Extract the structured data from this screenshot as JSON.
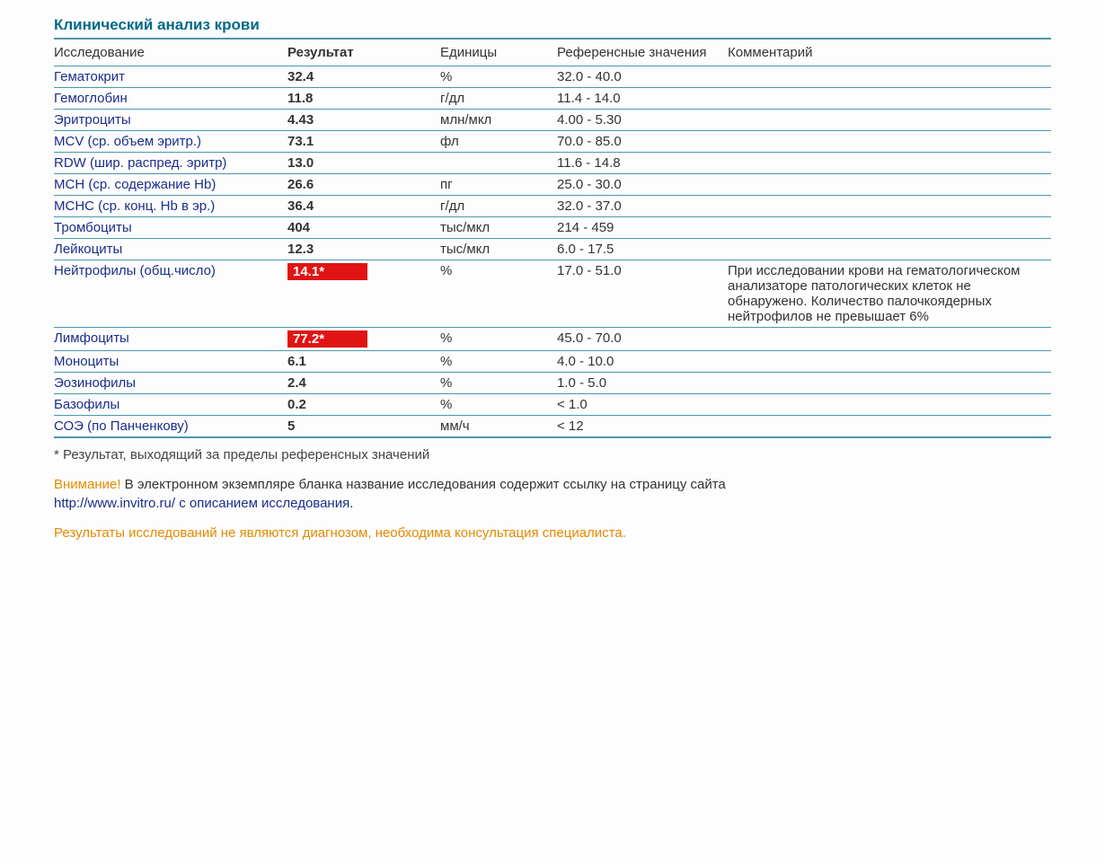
{
  "colors": {
    "title": "#006a87",
    "link": "#1a2e8a",
    "border": "#4a98ab",
    "thick_border": "#4a98ab",
    "highlight_bg": "#e01414",
    "text": "#333333",
    "attention": "#e48a00"
  },
  "title": "Клинический анализ крови",
  "columns": {
    "name": "Исследование",
    "result": "Результат",
    "units": "Единицы",
    "ref": "Референсные значения",
    "comment": "Комментарий"
  },
  "rows": [
    {
      "name": "Гематокрит",
      "result": "32.4",
      "units": "%",
      "ref": "32.0 - 40.0",
      "comment": "",
      "highlight": false
    },
    {
      "name": "Гемоглобин",
      "result": "11.8",
      "units": "г/дл",
      "ref": "11.4 - 14.0",
      "comment": "",
      "highlight": false
    },
    {
      "name": "Эритроциты",
      "result": "4.43",
      "units": "млн/мкл",
      "ref": "4.00 - 5.30",
      "comment": "",
      "highlight": false
    },
    {
      "name": "MCV (ср. объем эритр.)",
      "result": "73.1",
      "units": "фл",
      "ref": "70.0 - 85.0",
      "comment": "",
      "highlight": false
    },
    {
      "name": "RDW (шир. распред. эритр)",
      "result": "13.0",
      "units": "",
      "ref": "11.6 - 14.8",
      "comment": "",
      "highlight": false
    },
    {
      "name": "MCH (ср. содержание Hb)",
      "result": "26.6",
      "units": "пг",
      "ref": "25.0 - 30.0",
      "comment": "",
      "highlight": false
    },
    {
      "name": "MCHC (ср. конц. Hb в эр.)",
      "result": "36.4",
      "units": "г/дл",
      "ref": "32.0 - 37.0",
      "comment": "",
      "highlight": false
    },
    {
      "name": "Тромбоциты",
      "result": "404",
      "units": "тыс/мкл",
      "ref": "214 - 459",
      "comment": "",
      "highlight": false
    },
    {
      "name": "Лейкоциты",
      "result": "12.3",
      "units": "тыс/мкл",
      "ref": "6.0 - 17.5",
      "comment": "",
      "highlight": false
    },
    {
      "name": "Нейтрофилы (общ.число)",
      "result": "14.1*",
      "units": "%",
      "ref": "17.0 - 51.0",
      "comment": "При исследовании крови на гематологическом анализаторе патологических клеток не обнаружено. Количество палочкоядерных нейтрофилов не превышает 6%",
      "highlight": true
    },
    {
      "name": "Лимфоциты",
      "result": "77.2*",
      "units": "%",
      "ref": "45.0 - 70.0",
      "comment": "",
      "highlight": true
    },
    {
      "name": "Моноциты",
      "result": "6.1",
      "units": "%",
      "ref": "4.0 - 10.0",
      "comment": "",
      "highlight": false
    },
    {
      "name": "Эозинофилы",
      "result": "2.4",
      "units": "%",
      "ref": "1.0 - 5.0",
      "comment": "",
      "highlight": false
    },
    {
      "name": "Базофилы",
      "result": "0.2",
      "units": "%",
      "ref": "< 1.0",
      "comment": "",
      "highlight": false
    },
    {
      "name": "СОЭ (по Панченкову)",
      "result": "5",
      "units": "мм/ч",
      "ref": "< 12",
      "comment": "",
      "highlight": false
    }
  ],
  "footnote": "* Результат, выходящий за пределы референсных значений",
  "attention": {
    "word": "Внимание!",
    "text": " В электронном экземпляре бланка название исследования содержит ссылку на страницу сайта ",
    "link": "http://www.invitro.ru/",
    "text_after": " с описанием исследования."
  },
  "disclaimer": "Результаты исследований не являются диагнозом, необходима консультация специалиста."
}
